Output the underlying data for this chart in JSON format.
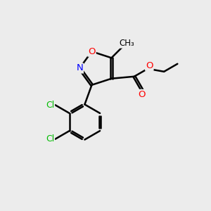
{
  "background_color": "#ECECEC",
  "bond_color": "#000000",
  "bond_width": 1.8,
  "atom_colors": {
    "O": "#FF0000",
    "N": "#0000FF",
    "Cl": "#00BB00",
    "C": "#000000"
  },
  "font_size": 9.5,
  "figsize": [
    3.0,
    3.0
  ],
  "dpi": 100
}
